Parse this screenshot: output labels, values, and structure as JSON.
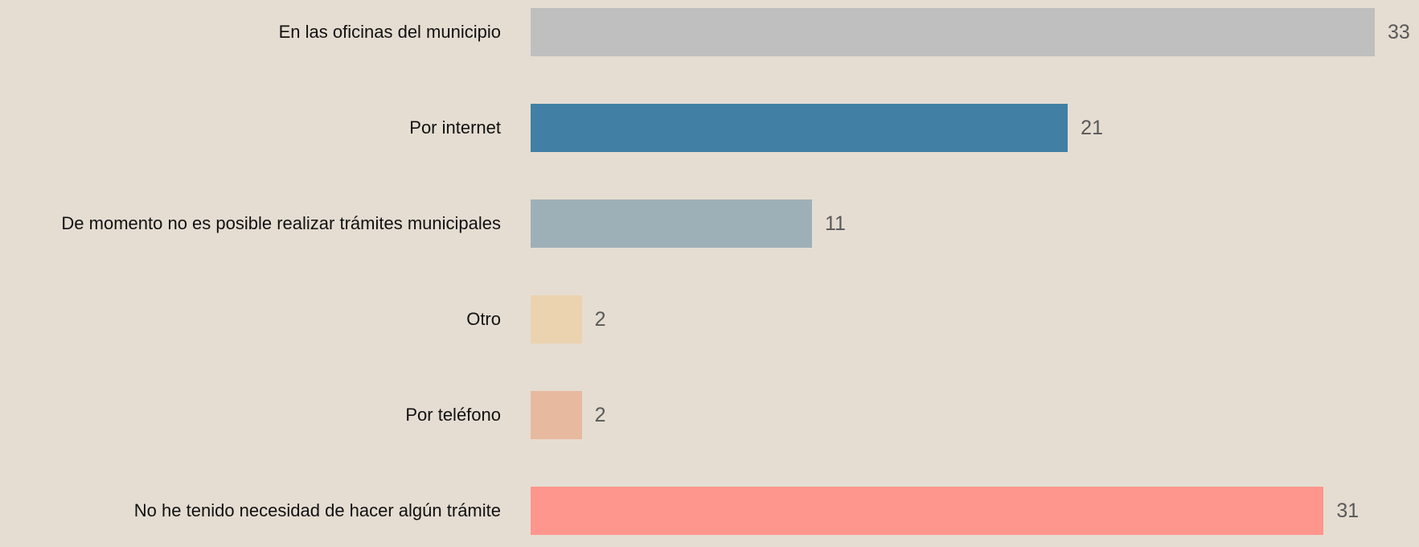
{
  "chart_data": {
    "type": "bar",
    "orientation": "horizontal",
    "categories": [
      "En las oficinas del municipio",
      "Por internet",
      "De momento no es posible realizar trámites municipales",
      "Otro",
      "Por teléfono",
      "No he tenido necesidad de hacer algún trámite"
    ],
    "values": [
      33,
      21,
      11,
      2,
      2,
      31
    ],
    "colors": [
      "#bfbfbf",
      "#4180a4",
      "#9eb0b7",
      "#ebd3b0",
      "#e7b99f",
      "#ff968d"
    ]
  }
}
